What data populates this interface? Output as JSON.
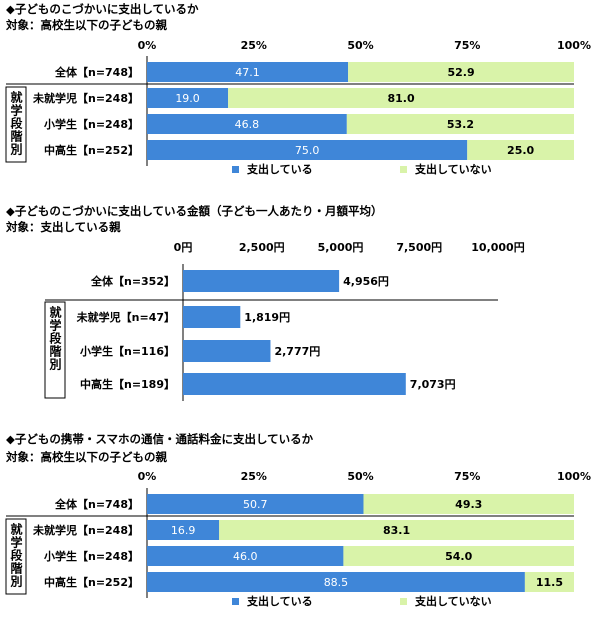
{
  "chart_data": [
    {
      "type": "bar",
      "orientation": "horizontal",
      "stacked": true,
      "title": "◆子どものこづかいに支出しているか",
      "subtitle": "対象：高校生以下の子どもの親",
      "group_label": "就学段階別",
      "categories": [
        "全体【n=748】",
        "未就学児【n=248】",
        "小学生【n=248】",
        "中高生【n=252】"
      ],
      "series": [
        {
          "name": "支出している",
          "values": [
            47.1,
            19.0,
            46.8,
            75.0
          ],
          "labels": [
            "47.1",
            "19.0",
            "46.8",
            "75.0"
          ],
          "color": "#3f86d8"
        },
        {
          "name": "支出していない",
          "values": [
            52.9,
            81.0,
            53.2,
            25.0
          ],
          "labels": [
            "52.9",
            "81.0",
            "53.2",
            "25.0"
          ],
          "color": "#d9f3a9"
        }
      ],
      "xlim": [
        0,
        100
      ],
      "ticks": [
        "0%",
        "25%",
        "50%",
        "75%",
        "100%"
      ],
      "legend_position": "bottom"
    },
    {
      "type": "bar",
      "orientation": "horizontal",
      "stacked": false,
      "title": "◆子どものこづかいに支出している金額（子ども一人あたり・月額平均）",
      "subtitle": "対象：支出している親",
      "group_label": "就学段階別",
      "categories": [
        "全体【n=352】",
        "未就学児【n=47】",
        "小学生【n=116】",
        "中高生【n=189】"
      ],
      "values": [
        4956,
        1819,
        2777,
        7073
      ],
      "labels": [
        "4,956円",
        "1,819円",
        "2,777円",
        "7,073円"
      ],
      "color": "#3f86d8",
      "xlim": [
        0,
        10000
      ],
      "ticks": [
        "0円",
        "2,500円",
        "5,000円",
        "7,500円",
        "10,000円"
      ]
    },
    {
      "type": "bar",
      "orientation": "horizontal",
      "stacked": true,
      "title": "◆子どもの携帯・スマホの通信・通話料金に支出しているか",
      "subtitle": "対象：高校生以下の子どもの親",
      "group_label": "就学段階別",
      "categories": [
        "全体【n=748】",
        "未就学児【n=248】",
        "小学生【n=248】",
        "中高生【n=252】"
      ],
      "series": [
        {
          "name": "支出している",
          "values": [
            50.7,
            16.9,
            46.0,
            88.5
          ],
          "labels": [
            "50.7",
            "16.9",
            "46.0",
            "88.5"
          ],
          "color": "#3f86d8"
        },
        {
          "name": "支出していない",
          "values": [
            49.3,
            83.1,
            54.0,
            11.5
          ],
          "labels": [
            "49.3",
            "83.1",
            "54.0",
            "11.5"
          ],
          "color": "#d9f3a9"
        }
      ],
      "xlim": [
        0,
        100
      ],
      "ticks": [
        "0%",
        "25%",
        "50%",
        "75%",
        "100%"
      ],
      "legend_position": "bottom"
    }
  ]
}
